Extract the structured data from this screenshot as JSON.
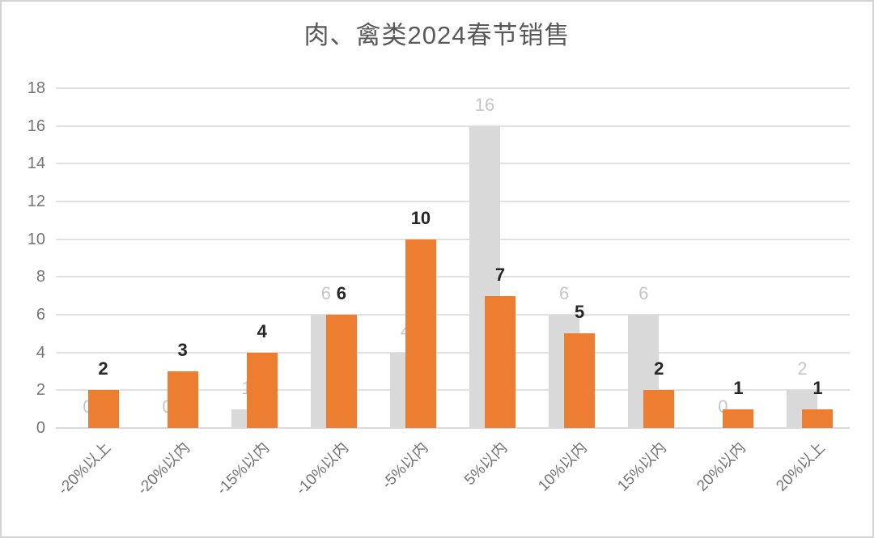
{
  "chart_data": {
    "type": "bar",
    "title": "肉、禽类2024春节销售",
    "categories": [
      "-20%以上",
      "-20%以内",
      "-15%以内",
      "-10%以内",
      "-5%以内",
      "5%以内",
      "10%以内",
      "15%以内",
      "20%以内",
      "20%以上"
    ],
    "series": [
      {
        "name": "gray-series",
        "color": "#D9D9D9",
        "label_color": "#C6C6C6",
        "label_bold": false,
        "values": [
          0,
          0,
          1,
          6,
          4,
          16,
          6,
          6,
          0,
          2
        ]
      },
      {
        "name": "orange-series",
        "color": "#ED7D31",
        "label_color": "#262626",
        "label_bold": true,
        "values": [
          2,
          3,
          4,
          6,
          10,
          7,
          5,
          2,
          1,
          1
        ]
      }
    ],
    "yticks": [
      0,
      2,
      4,
      6,
      8,
      10,
      12,
      14,
      16,
      18
    ],
    "ylim": [
      0,
      18
    ],
    "grid": true,
    "legend_position": "none",
    "data_labels": true,
    "bar_overlap_percent": 50
  },
  "style": {
    "title_color": "#595959",
    "axis_tick_color": "#757575",
    "gridline_color": "#E1E1E1",
    "frame_border_color": "#D4D4D4",
    "background_color": "#FFFFFF"
  }
}
